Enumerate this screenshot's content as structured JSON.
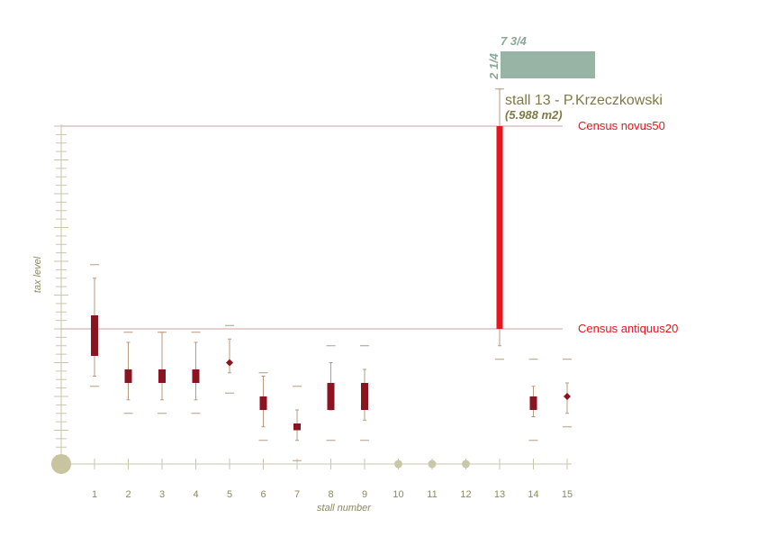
{
  "chart_data": {
    "type": "boxplot",
    "xlabel": "stall number",
    "ylabel": "tax level",
    "ylim": [
      0,
      100
    ],
    "categories": [
      "1",
      "2",
      "3",
      "4",
      "5",
      "6",
      "7",
      "8",
      "9",
      "10",
      "11",
      "12",
      "13",
      "14",
      "15"
    ],
    "stalls": [
      {
        "stall": "1",
        "kind": "box",
        "whisker_low": 26,
        "q1": 32,
        "median": 36,
        "q3": 44,
        "whisker_high": 55,
        "cap_low": 23,
        "cap_high": 59
      },
      {
        "stall": "2",
        "kind": "box",
        "whisker_low": 19,
        "q1": 24,
        "median": 26,
        "q3": 28,
        "whisker_high": 36,
        "cap_low": 15,
        "cap_high": 39
      },
      {
        "stall": "3",
        "kind": "box",
        "whisker_low": 19,
        "q1": 24,
        "median": 26,
        "q3": 28,
        "whisker_high": 39,
        "cap_low": 15,
        "cap_high": 39
      },
      {
        "stall": "4",
        "kind": "box",
        "whisker_low": 19,
        "q1": 24,
        "median": 26,
        "q3": 28,
        "whisker_high": 36,
        "cap_low": 15,
        "cap_high": 39
      },
      {
        "stall": "5",
        "kind": "point",
        "value": 30,
        "whisker_low": 27,
        "whisker_high": 37,
        "cap_low": 21,
        "cap_high": 41
      },
      {
        "stall": "6",
        "kind": "box",
        "whisker_low": 11,
        "q1": 16,
        "median": 18,
        "q3": 20,
        "whisker_high": 26,
        "cap_low": 7,
        "cap_high": 27
      },
      {
        "stall": "7",
        "kind": "box",
        "whisker_low": 7,
        "q1": 10,
        "median": 11,
        "q3": 12,
        "whisker_high": 16,
        "cap_low": 1,
        "cap_high": 23
      },
      {
        "stall": "8",
        "kind": "box",
        "whisker_low": 16,
        "q1": 16,
        "median": 20,
        "q3": 24,
        "whisker_high": 30,
        "cap_low": 7,
        "cap_high": 35
      },
      {
        "stall": "9",
        "kind": "box",
        "whisker_low": 13,
        "q1": 16,
        "median": 20,
        "q3": 24,
        "whisker_high": 28,
        "cap_low": 7,
        "cap_high": 35
      },
      {
        "stall": "10",
        "kind": "empty"
      },
      {
        "stall": "11",
        "kind": "empty"
      },
      {
        "stall": "12",
        "kind": "empty"
      },
      {
        "stall": "13",
        "kind": "highlight",
        "low": 40,
        "high": 100,
        "whisker_low": 35,
        "whisker_high": 111,
        "cap_low": 31,
        "cap_high": 111
      },
      {
        "stall": "14",
        "kind": "box",
        "whisker_low": 14,
        "q1": 16,
        "median": 18,
        "q3": 20,
        "whisker_high": 23,
        "cap_low": 7,
        "cap_high": 31
      },
      {
        "stall": "15",
        "kind": "point",
        "value": 20,
        "whisker_low": 15,
        "whisker_high": 24,
        "cap_low": 11,
        "cap_high": 31
      }
    ],
    "reference_lines": [
      {
        "label": "Census novus50",
        "value": 100
      },
      {
        "label": "Census antiquus20",
        "value": 40
      }
    ],
    "highlight": {
      "stall": "13",
      "title": "stall 13 - P.Krzeczkowski",
      "area": "(5.988 m2)",
      "width_label": "7 3/4",
      "depth_label": "2 1/4"
    },
    "grid": false
  },
  "colors": {
    "box": "#8b1420",
    "highlight": "#e8141e",
    "whisker": "#b89a80",
    "axis": "#c9c6a8",
    "ref_line": "#c9a0a0",
    "empty_marker": "#c8c8a8",
    "origin_marker": "#c8c4a0",
    "footprint": "#98b4a4"
  }
}
